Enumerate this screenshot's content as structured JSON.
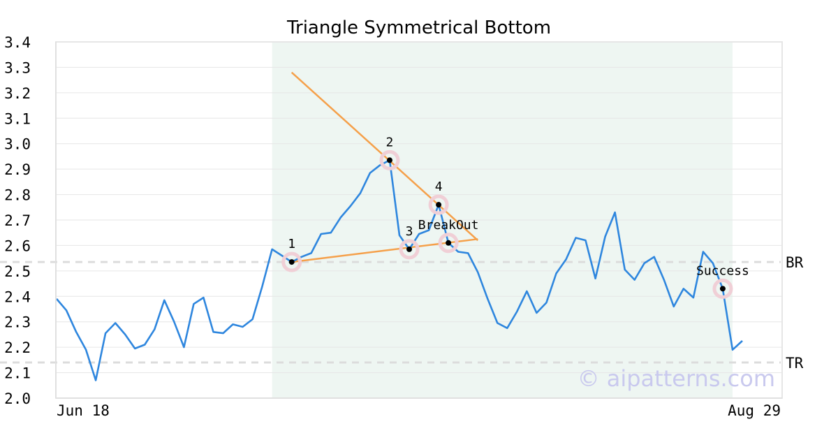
{
  "chart_data": {
    "type": "line",
    "title": "Triangle Symmetrical Bottom",
    "x_tick_labels": [
      "Jun 18",
      "Aug 29"
    ],
    "ylim": [
      2.0,
      3.4
    ],
    "y_ticks": [
      "2.0",
      "2.1",
      "2.2",
      "2.3",
      "2.4",
      "2.5",
      "2.6",
      "2.7",
      "2.8",
      "2.9",
      "3.0",
      "3.1",
      "3.2",
      "3.3",
      "3.4"
    ],
    "grid": "horizontal",
    "series": [
      {
        "color": "#2e86de",
        "values": [
          2.39,
          2.345,
          2.26,
          2.19,
          2.07,
          2.255,
          2.295,
          2.25,
          2.195,
          2.21,
          2.27,
          2.385,
          2.3,
          2.2,
          2.37,
          2.395,
          2.26,
          2.255,
          2.29,
          2.28,
          2.31,
          2.44,
          2.585,
          2.56,
          2.535,
          2.555,
          2.57,
          2.645,
          2.65,
          2.71,
          2.755,
          2.805,
          2.885,
          2.915,
          2.935,
          2.64,
          2.585,
          2.645,
          2.66,
          2.76,
          2.61,
          2.575,
          2.57,
          2.495,
          2.39,
          2.295,
          2.275,
          2.34,
          2.42,
          2.335,
          2.375,
          2.49,
          2.545,
          2.63,
          2.62,
          2.47,
          2.635,
          2.73,
          2.505,
          2.465,
          2.53,
          2.555,
          2.465,
          2.36,
          2.43,
          2.395,
          2.575,
          2.53,
          2.43,
          2.19,
          2.225
        ]
      }
    ],
    "pattern_region": {
      "start_index": 22,
      "end_index": 69,
      "color": "#eef6f2"
    },
    "pattern_points": [
      {
        "label": "1",
        "index": 24,
        "value": 2.535
      },
      {
        "label": "2",
        "index": 34,
        "value": 2.935
      },
      {
        "label": "3",
        "index": 36,
        "value": 2.585
      },
      {
        "label": "4",
        "index": 39,
        "value": 2.76
      },
      {
        "label": "BreakOut",
        "index": 40,
        "value": 2.61
      },
      {
        "label": "Success",
        "index": 68,
        "value": 2.43
      }
    ],
    "trend_lines": [
      {
        "color": "#f5a04a",
        "from": {
          "index": 24,
          "value": 3.28
        },
        "to": {
          "index": 43,
          "value": 2.62
        }
      },
      {
        "color": "#f5a04a",
        "from": {
          "index": 24,
          "value": 2.535
        },
        "to": {
          "index": 43,
          "value": 2.625
        }
      }
    ],
    "reference_lines": [
      {
        "label": "BR",
        "value": 2.535
      },
      {
        "label": "TR",
        "value": 2.14
      }
    ]
  },
  "watermark": "© aipatterns.com"
}
